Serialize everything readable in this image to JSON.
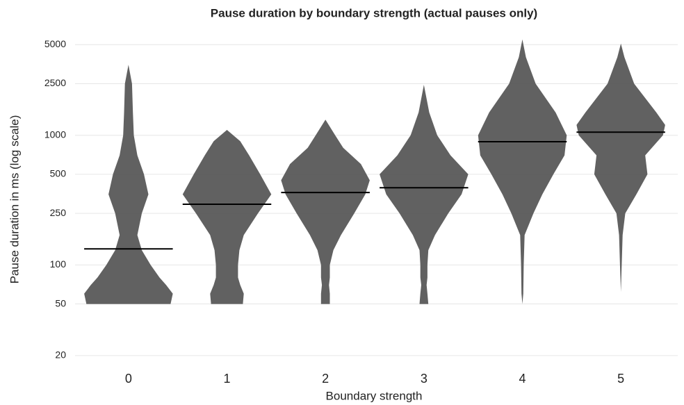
{
  "chart_data": {
    "type": "violin",
    "title": "Pause duration by boundary strength (actual pauses only)",
    "x_label": "Boundary strength",
    "y_label": "Pause duration in ms (log scale)",
    "y_scale": "log",
    "categories": [
      "0",
      "1",
      "2",
      "3",
      "4",
      "5"
    ],
    "color": "#595959",
    "median_color": "#000000",
    "grid": true,
    "ylim": [
      17,
      6500
    ],
    "yticks": [
      20,
      50,
      100,
      250,
      500,
      1000,
      2500,
      5000
    ],
    "violins": [
      {
        "y": [
          50,
          60,
          70,
          80,
          100,
          130,
          170,
          250,
          350,
          500,
          700,
          1000,
          1500,
          2500,
          3500
        ],
        "density": [
          0.95,
          1.0,
          0.85,
          0.7,
          0.5,
          0.3,
          0.2,
          0.3,
          0.45,
          0.35,
          0.2,
          0.12,
          0.1,
          0.08,
          0
        ],
        "median": 133
      },
      {
        "y": [
          50,
          60,
          70,
          80,
          100,
          130,
          170,
          250,
          350,
          500,
          700,
          900,
          1100
        ],
        "density": [
          0.36,
          0.38,
          0.3,
          0.25,
          0.25,
          0.28,
          0.38,
          0.7,
          1.0,
          0.75,
          0.5,
          0.3,
          0
        ],
        "median": 294
      },
      {
        "y": [
          50,
          60,
          70,
          80,
          100,
          130,
          170,
          250,
          350,
          450,
          600,
          800,
          1000,
          1320
        ],
        "density": [
          0.1,
          0.1,
          0.08,
          0.1,
          0.1,
          0.18,
          0.35,
          0.65,
          0.9,
          1.0,
          0.8,
          0.4,
          0.22,
          0
        ],
        "median": 362
      },
      {
        "y": [
          50,
          60,
          70,
          80,
          100,
          130,
          170,
          250,
          350,
          500,
          700,
          1000,
          1500,
          2450
        ],
        "density": [
          0.1,
          0.08,
          0.06,
          0.08,
          0.08,
          0.1,
          0.25,
          0.55,
          0.85,
          1.0,
          0.6,
          0.3,
          0.12,
          0
        ],
        "median": 394
      },
      {
        "y": [
          50,
          60,
          100,
          170,
          250,
          350,
          500,
          700,
          1000,
          1500,
          2500,
          4000,
          5480
        ],
        "density": [
          0,
          0.02,
          0.03,
          0.05,
          0.25,
          0.45,
          0.7,
          0.95,
          1.0,
          0.75,
          0.3,
          0.08,
          0
        ],
        "median": 892
      },
      {
        "y": [
          62,
          100,
          170,
          250,
          350,
          500,
          700,
          1000,
          1200,
          1500,
          2500,
          4000,
          5100
        ],
        "density": [
          0,
          0.02,
          0.04,
          0.1,
          0.35,
          0.6,
          0.55,
          0.95,
          1.0,
          0.8,
          0.3,
          0.08,
          0
        ],
        "median": 1057
      }
    ]
  }
}
